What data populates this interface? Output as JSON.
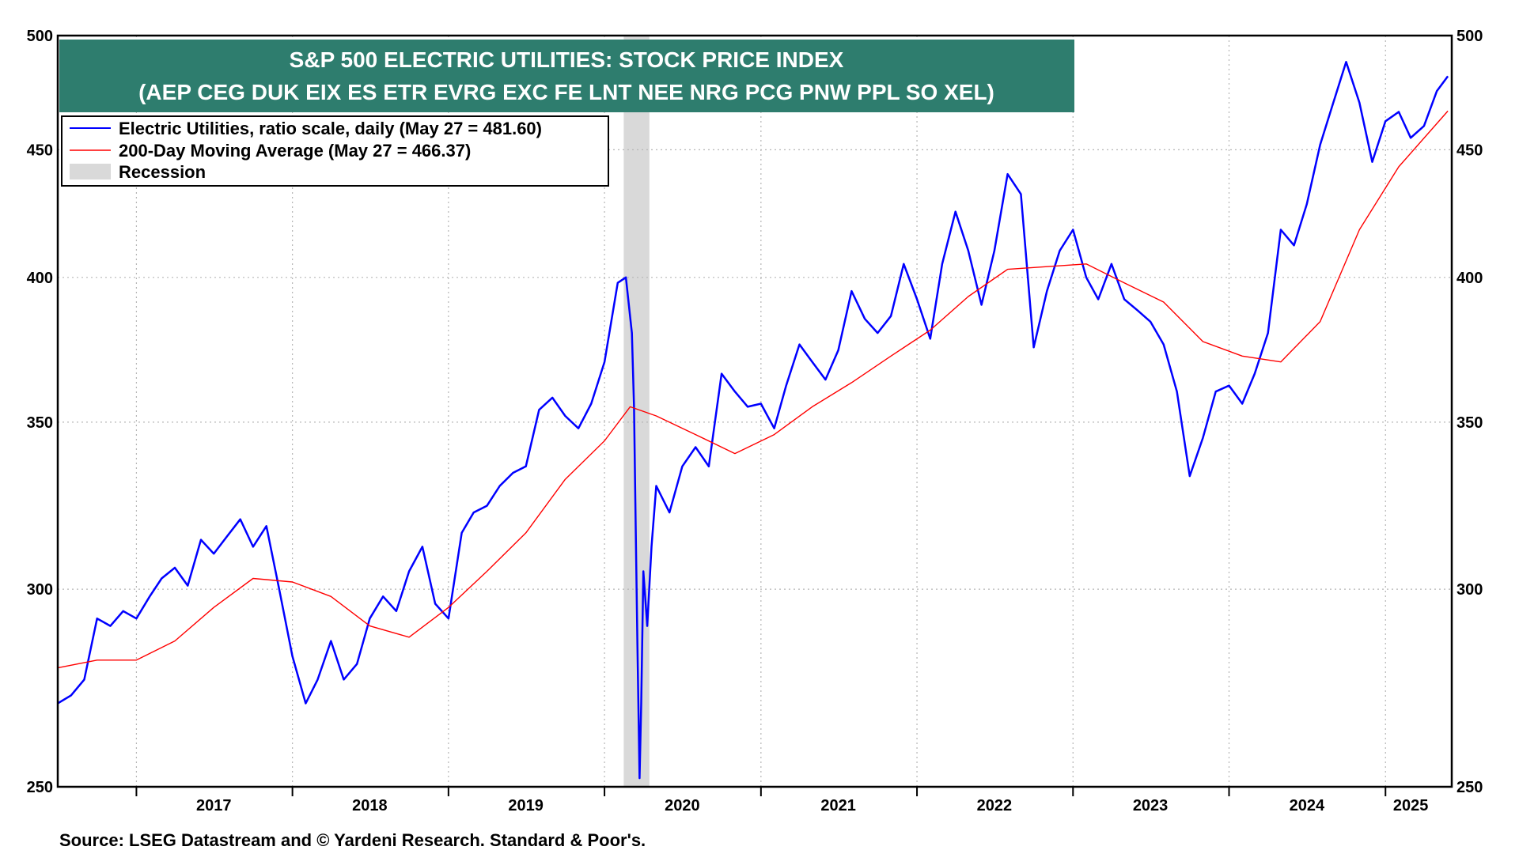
{
  "chart_data": {
    "type": "line",
    "title": "S&P 500 ELECTRIC UTILITIES: STOCK PRICE INDEX",
    "subtitle": "(AEP CEG DUK EIX ES ETR EVRG EXC FE LNT NEE NRG PCG PNW PPL SO XEL)",
    "source": "Source: LSEG Datastream and © Yardeni Research. Standard & Poor's.",
    "y_scale": "log",
    "ylim": [
      250,
      500
    ],
    "y_ticks": [
      250,
      300,
      350,
      400,
      450,
      500
    ],
    "y_tick_labels": [
      "250",
      "300",
      "350",
      "400",
      "450",
      "500"
    ],
    "xlim": [
      "2016-07-01",
      "2025-06-05"
    ],
    "x_tick_labels": [
      "2017",
      "2018",
      "2019",
      "2020",
      "2021",
      "2022",
      "2023",
      "2024",
      "2025"
    ],
    "x_tick_dates": [
      "2017-07-01",
      "2018-07-01",
      "2019-07-01",
      "2020-07-01",
      "2021-07-01",
      "2022-07-01",
      "2023-07-01",
      "2024-07-01",
      "2025-03-01"
    ],
    "grid": true,
    "legend_position": "top-left",
    "legend": [
      {
        "label": "Electric Utilities, ratio scale, daily (May 27 = 481.60)",
        "color": "#0000ff"
      },
      {
        "label": "200-Day Moving Average (May 27 = 466.37)",
        "color": "#ff0000"
      },
      {
        "label": "Recession",
        "color": "#d9d9d9"
      }
    ],
    "recession": [
      "2020-02-15",
      "2020-04-15"
    ],
    "series": [
      {
        "name": "Electric Utilities, ratio scale, daily (May 27 = 481.60)",
        "color": "#0000ff",
        "points": [
          [
            "2016-07-01",
            270
          ],
          [
            "2016-08-01",
            272
          ],
          [
            "2016-09-01",
            276
          ],
          [
            "2016-10-01",
            292
          ],
          [
            "2016-11-01",
            290
          ],
          [
            "2016-12-01",
            294
          ],
          [
            "2017-01-01",
            292
          ],
          [
            "2017-02-01",
            298
          ],
          [
            "2017-03-01",
            303
          ],
          [
            "2017-04-01",
            306
          ],
          [
            "2017-05-01",
            301
          ],
          [
            "2017-06-01",
            314
          ],
          [
            "2017-07-01",
            310
          ],
          [
            "2017-08-01",
            315
          ],
          [
            "2017-09-01",
            320
          ],
          [
            "2017-10-01",
            312
          ],
          [
            "2017-11-01",
            318
          ],
          [
            "2017-12-01",
            300
          ],
          [
            "2018-01-01",
            282
          ],
          [
            "2018-02-01",
            270
          ],
          [
            "2018-03-01",
            276
          ],
          [
            "2018-04-01",
            286
          ],
          [
            "2018-05-01",
            276
          ],
          [
            "2018-06-01",
            280
          ],
          [
            "2018-07-01",
            292
          ],
          [
            "2018-08-01",
            298
          ],
          [
            "2018-09-01",
            294
          ],
          [
            "2018-10-01",
            305
          ],
          [
            "2018-11-01",
            312
          ],
          [
            "2018-12-01",
            296
          ],
          [
            "2019-01-01",
            292
          ],
          [
            "2019-02-01",
            316
          ],
          [
            "2019-03-01",
            322
          ],
          [
            "2019-04-01",
            324
          ],
          [
            "2019-05-01",
            330
          ],
          [
            "2019-06-01",
            334
          ],
          [
            "2019-07-01",
            336
          ],
          [
            "2019-08-01",
            354
          ],
          [
            "2019-09-01",
            358
          ],
          [
            "2019-10-01",
            352
          ],
          [
            "2019-11-01",
            348
          ],
          [
            "2019-12-01",
            356
          ],
          [
            "2020-01-01",
            370
          ],
          [
            "2020-02-01",
            398
          ],
          [
            "2020-02-20",
            400
          ],
          [
            "2020-03-05",
            380
          ],
          [
            "2020-03-10",
            355
          ],
          [
            "2020-03-14",
            318
          ],
          [
            "2020-03-18",
            285
          ],
          [
            "2020-03-23",
            252
          ],
          [
            "2020-03-27",
            270
          ],
          [
            "2020-04-01",
            305
          ],
          [
            "2020-04-10",
            290
          ],
          [
            "2020-04-20",
            312
          ],
          [
            "2020-05-01",
            330
          ],
          [
            "2020-06-01",
            322
          ],
          [
            "2020-07-01",
            336
          ],
          [
            "2020-08-01",
            342
          ],
          [
            "2020-09-01",
            336
          ],
          [
            "2020-10-01",
            366
          ],
          [
            "2020-11-01",
            360
          ],
          [
            "2020-12-01",
            355
          ],
          [
            "2021-01-01",
            356
          ],
          [
            "2021-02-01",
            348
          ],
          [
            "2021-03-01",
            362
          ],
          [
            "2021-04-01",
            376
          ],
          [
            "2021-05-01",
            370
          ],
          [
            "2021-06-01",
            364
          ],
          [
            "2021-07-01",
            374
          ],
          [
            "2021-08-01",
            395
          ],
          [
            "2021-09-01",
            385
          ],
          [
            "2021-10-01",
            380
          ],
          [
            "2021-11-01",
            386
          ],
          [
            "2021-12-01",
            405
          ],
          [
            "2022-01-01",
            392
          ],
          [
            "2022-02-01",
            378
          ],
          [
            "2022-03-01",
            405
          ],
          [
            "2022-04-01",
            425
          ],
          [
            "2022-05-01",
            410
          ],
          [
            "2022-06-01",
            390
          ],
          [
            "2022-07-01",
            410
          ],
          [
            "2022-08-01",
            440
          ],
          [
            "2022-09-01",
            432
          ],
          [
            "2022-10-01",
            375
          ],
          [
            "2022-11-01",
            395
          ],
          [
            "2022-12-01",
            410
          ],
          [
            "2023-01-01",
            418
          ],
          [
            "2023-02-01",
            400
          ],
          [
            "2023-03-01",
            392
          ],
          [
            "2023-04-01",
            405
          ],
          [
            "2023-05-01",
            392
          ],
          [
            "2023-06-01",
            388
          ],
          [
            "2023-07-01",
            384
          ],
          [
            "2023-08-01",
            376
          ],
          [
            "2023-09-01",
            360
          ],
          [
            "2023-10-01",
            333
          ],
          [
            "2023-11-01",
            345
          ],
          [
            "2023-12-01",
            360
          ],
          [
            "2024-01-01",
            362
          ],
          [
            "2024-02-01",
            356
          ],
          [
            "2024-03-01",
            366
          ],
          [
            "2024-04-01",
            380
          ],
          [
            "2024-05-01",
            418
          ],
          [
            "2024-06-01",
            412
          ],
          [
            "2024-07-01",
            428
          ],
          [
            "2024-08-01",
            452
          ],
          [
            "2024-09-01",
            470
          ],
          [
            "2024-10-01",
            488
          ],
          [
            "2024-11-01",
            470
          ],
          [
            "2024-12-01",
            445
          ],
          [
            "2025-01-01",
            462
          ],
          [
            "2025-02-01",
            466
          ],
          [
            "2025-03-01",
            455
          ],
          [
            "2025-04-01",
            460
          ],
          [
            "2025-05-01",
            475
          ],
          [
            "2025-05-27",
            481.6
          ]
        ]
      },
      {
        "name": "200-Day Moving Average (May 27 = 466.37)",
        "color": "#ff0000",
        "points": [
          [
            "2016-07-01",
            279
          ],
          [
            "2016-10-01",
            281
          ],
          [
            "2017-01-01",
            281
          ],
          [
            "2017-04-01",
            286
          ],
          [
            "2017-07-01",
            295
          ],
          [
            "2017-10-01",
            303
          ],
          [
            "2018-01-01",
            302
          ],
          [
            "2018-04-01",
            298
          ],
          [
            "2018-07-01",
            290
          ],
          [
            "2018-10-01",
            287
          ],
          [
            "2019-01-01",
            295
          ],
          [
            "2019-04-01",
            305
          ],
          [
            "2019-07-01",
            316
          ],
          [
            "2019-10-01",
            332
          ],
          [
            "2020-01-01",
            344
          ],
          [
            "2020-03-01",
            355
          ],
          [
            "2020-05-01",
            352
          ],
          [
            "2020-08-01",
            346
          ],
          [
            "2020-11-01",
            340
          ],
          [
            "2021-02-01",
            346
          ],
          [
            "2021-05-01",
            355
          ],
          [
            "2021-08-01",
            363
          ],
          [
            "2021-11-01",
            372
          ],
          [
            "2022-02-01",
            381
          ],
          [
            "2022-05-01",
            393
          ],
          [
            "2022-08-01",
            403
          ],
          [
            "2022-11-01",
            404
          ],
          [
            "2023-02-01",
            405
          ],
          [
            "2023-05-01",
            398
          ],
          [
            "2023-08-01",
            391
          ],
          [
            "2023-11-01",
            377
          ],
          [
            "2024-02-01",
            372
          ],
          [
            "2024-05-01",
            370
          ],
          [
            "2024-08-01",
            384
          ],
          [
            "2024-11-01",
            418
          ],
          [
            "2025-02-01",
            443
          ],
          [
            "2025-05-27",
            466.37
          ]
        ]
      }
    ]
  }
}
